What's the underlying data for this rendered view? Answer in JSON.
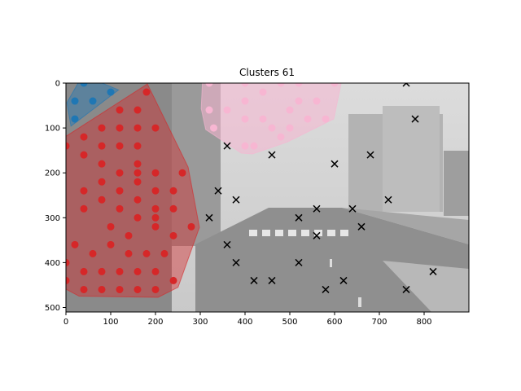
{
  "chart_data": {
    "type": "scatter",
    "title": "Clusters 61",
    "xlabel": "",
    "ylabel": "",
    "xlim": [
      0,
      900
    ],
    "ylim": [
      510,
      0
    ],
    "y_inverted": true,
    "grid": false,
    "background": "grayscale street-scene photograph",
    "x_ticks": [
      0,
      100,
      200,
      300,
      400,
      500,
      600,
      700,
      800
    ],
    "y_ticks": [
      0,
      100,
      200,
      300,
      400,
      500
    ],
    "colors": {
      "blue": "#1f77b4",
      "red": "#d62728",
      "pink": "#f7b6d2",
      "noise": "#000000"
    },
    "series": [
      {
        "color": "#1f77b4",
        "marker": "o",
        "hull": true,
        "points": [
          [
            40,
            0
          ],
          [
            20,
            40
          ],
          [
            60,
            40
          ],
          [
            100,
            20
          ],
          [
            20,
            80
          ]
        ]
      },
      {
        "color": "#d62728",
        "marker": "o",
        "hull": true,
        "points": [
          [
            180,
            20
          ],
          [
            120,
            60
          ],
          [
            160,
            60
          ],
          [
            80,
            100
          ],
          [
            120,
            100
          ],
          [
            160,
            100
          ],
          [
            200,
            100
          ],
          [
            40,
            120
          ],
          [
            0,
            140
          ],
          [
            80,
            140
          ],
          [
            120,
            140
          ],
          [
            160,
            140
          ],
          [
            40,
            160
          ],
          [
            80,
            180
          ],
          [
            160,
            180
          ],
          [
            120,
            200
          ],
          [
            160,
            200
          ],
          [
            200,
            200
          ],
          [
            260,
            200
          ],
          [
            80,
            220
          ],
          [
            160,
            220
          ],
          [
            40,
            240
          ],
          [
            120,
            240
          ],
          [
            200,
            240
          ],
          [
            240,
            240
          ],
          [
            80,
            260
          ],
          [
            160,
            260
          ],
          [
            40,
            280
          ],
          [
            120,
            280
          ],
          [
            200,
            280
          ],
          [
            240,
            280
          ],
          [
            160,
            300
          ],
          [
            200,
            300
          ],
          [
            100,
            320
          ],
          [
            200,
            320
          ],
          [
            280,
            320
          ],
          [
            140,
            340
          ],
          [
            240,
            340
          ],
          [
            20,
            360
          ],
          [
            100,
            360
          ],
          [
            60,
            380
          ],
          [
            140,
            380
          ],
          [
            180,
            380
          ],
          [
            220,
            380
          ],
          [
            0,
            400
          ],
          [
            40,
            420
          ],
          [
            80,
            420
          ],
          [
            120,
            420
          ],
          [
            160,
            420
          ],
          [
            200,
            420
          ],
          [
            0,
            440
          ],
          [
            240,
            440
          ],
          [
            40,
            460
          ],
          [
            80,
            460
          ],
          [
            120,
            460
          ],
          [
            160,
            460
          ],
          [
            200,
            460
          ]
        ]
      },
      {
        "color": "#f7b6d2",
        "marker": "o",
        "hull": true,
        "points": [
          [
            320,
            0
          ],
          [
            400,
            0
          ],
          [
            480,
            0
          ],
          [
            520,
            0
          ],
          [
            600,
            0
          ],
          [
            440,
            20
          ],
          [
            400,
            40
          ],
          [
            520,
            40
          ],
          [
            560,
            40
          ],
          [
            320,
            60
          ],
          [
            360,
            60
          ],
          [
            500,
            60
          ],
          [
            400,
            80
          ],
          [
            440,
            80
          ],
          [
            540,
            80
          ],
          [
            580,
            80
          ],
          [
            460,
            100
          ],
          [
            330,
            100
          ],
          [
            500,
            100
          ],
          [
            420,
            140
          ],
          [
            480,
            120
          ],
          [
            400,
            140
          ]
        ]
      },
      {
        "color": "#000000",
        "marker": "x",
        "hull": false,
        "points": [
          [
            760,
            0
          ],
          [
            780,
            80
          ],
          [
            360,
            140
          ],
          [
            460,
            160
          ],
          [
            680,
            160
          ],
          [
            600,
            180
          ],
          [
            340,
            240
          ],
          [
            380,
            260
          ],
          [
            720,
            260
          ],
          [
            560,
            280
          ],
          [
            640,
            280
          ],
          [
            320,
            300
          ],
          [
            520,
            300
          ],
          [
            660,
            320
          ],
          [
            560,
            340
          ],
          [
            360,
            360
          ],
          [
            380,
            400
          ],
          [
            520,
            400
          ],
          [
            820,
            420
          ],
          [
            420,
            440
          ],
          [
            460,
            440
          ],
          [
            620,
            440
          ],
          [
            580,
            460
          ],
          [
            760,
            460
          ]
        ]
      }
    ]
  }
}
